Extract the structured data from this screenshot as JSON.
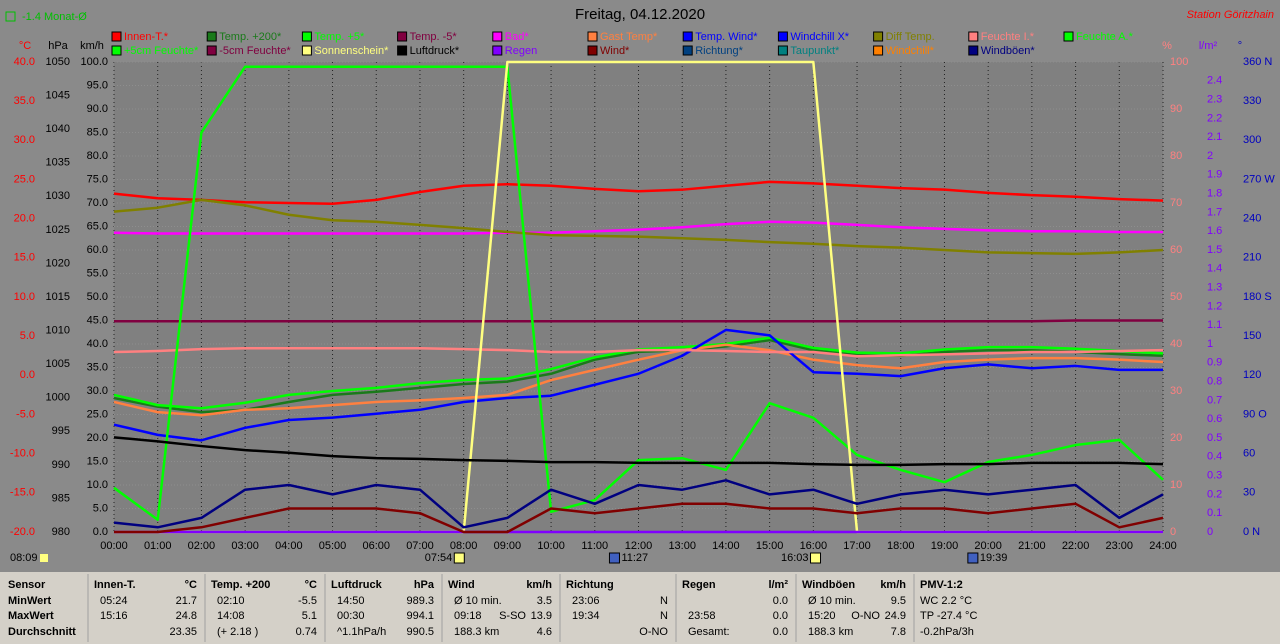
{
  "chart_data": {
    "type": "line",
    "title": "Freitag, 04.12.2020",
    "station": "Station Göritzhain",
    "month_note": "-1.4 Monat-Ø",
    "left_note": "08:09",
    "xlim": [
      0,
      24
    ],
    "xticks": [
      {
        "value": 0,
        "label": "00:00"
      },
      {
        "value": 1,
        "label": "01:00"
      },
      {
        "value": 2,
        "label": "02:00"
      },
      {
        "value": 3,
        "label": "03:00"
      },
      {
        "value": 4,
        "label": "04:00"
      },
      {
        "value": 5,
        "label": "05:00"
      },
      {
        "value": 6,
        "label": "06:00"
      },
      {
        "value": 7,
        "label": "07:00"
      },
      {
        "value": 8,
        "label": "08:00"
      },
      {
        "value": 9,
        "label": "09:00"
      },
      {
        "value": 10,
        "label": "10:00"
      },
      {
        "value": 11,
        "label": "11:00"
      },
      {
        "value": 12,
        "label": "12:00"
      },
      {
        "value": 13,
        "label": "13:00"
      },
      {
        "value": 14,
        "label": "14:00"
      },
      {
        "value": 15,
        "label": "15:00"
      },
      {
        "value": 16,
        "label": "16:00"
      },
      {
        "value": 17,
        "label": "17:00"
      },
      {
        "value": 18,
        "label": "18:00"
      },
      {
        "value": 19,
        "label": "19:00"
      },
      {
        "value": 20,
        "label": "20:00"
      },
      {
        "value": 21,
        "label": "21:00"
      },
      {
        "value": 22,
        "label": "22:00"
      },
      {
        "value": 23,
        "label": "23:00"
      },
      {
        "value": 24,
        "label": "24:00"
      }
    ],
    "x": [
      0,
      1,
      2,
      3,
      4,
      5,
      6,
      7,
      8,
      9,
      10,
      11,
      12,
      13,
      14,
      15,
      16,
      17,
      18,
      19,
      20,
      21,
      22,
      23,
      24
    ],
    "grid": true,
    "axes": [
      {
        "label": "°C",
        "color": "#ff0000",
        "lim": [
          -20,
          40
        ],
        "ticks": [
          {
            "value": -20,
            "label": "-20.0"
          },
          {
            "value": -15,
            "label": "-15.0"
          },
          {
            "value": -10,
            "label": "-10.0"
          },
          {
            "value": -5,
            "label": "-5.0"
          },
          {
            "value": 0,
            "label": "0.0"
          },
          {
            "value": 5,
            "label": "5.0"
          },
          {
            "value": 10,
            "label": "10.0"
          },
          {
            "value": 15,
            "label": "15.0"
          },
          {
            "value": 20,
            "label": "20.0"
          },
          {
            "value": 25,
            "label": "25.0"
          },
          {
            "value": 30,
            "label": "30.0"
          },
          {
            "value": 35,
            "label": "35.0"
          },
          {
            "value": 40,
            "label": "40.0"
          }
        ]
      },
      {
        "label": "hPa",
        "color": "#000000",
        "lim": [
          980,
          1050
        ],
        "ticks": [
          980,
          985,
          990,
          995,
          1000,
          1005,
          1010,
          1015,
          1020,
          1025,
          1030,
          1035,
          1040,
          1045,
          1050
        ]
      },
      {
        "label": "km/h",
        "color": "#000000",
        "lim": [
          0,
          100
        ],
        "ticks": [
          {
            "value": 0,
            "label": "0.0"
          },
          {
            "value": 5,
            "label": "5.0"
          },
          {
            "value": 10,
            "label": "10.0"
          },
          {
            "value": 15,
            "label": "15.0"
          },
          {
            "value": 20,
            "label": "20.0"
          },
          {
            "value": 25,
            "label": "25.0"
          },
          {
            "value": 30,
            "label": "30.0"
          },
          {
            "value": 35,
            "label": "35.0"
          },
          {
            "value": 40,
            "label": "40.0"
          },
          {
            "value": 45,
            "label": "45.0"
          },
          {
            "value": 50,
            "label": "50.0"
          },
          {
            "value": 55,
            "label": "55.0"
          },
          {
            "value": 60,
            "label": "60.0"
          },
          {
            "value": 65,
            "label": "65.0"
          },
          {
            "value": 70,
            "label": "70.0"
          },
          {
            "value": 75,
            "label": "75.0"
          },
          {
            "value": 80,
            "label": "80.0"
          },
          {
            "value": 85,
            "label": "85.0"
          },
          {
            "value": 90,
            "label": "90.0"
          },
          {
            "value": 95,
            "label": "95.0"
          },
          {
            "value": 100,
            "label": "100.0"
          }
        ]
      },
      {
        "label": "%",
        "color": "#ff8080",
        "lim": [
          0,
          100
        ],
        "ticks": [
          0,
          10,
          20,
          30,
          40,
          50,
          60,
          70,
          80,
          90,
          100
        ]
      },
      {
        "label": "l/m²",
        "color": "#8000ff",
        "lim": [
          0,
          2.5
        ],
        "ticks": [
          0,
          0.1,
          0.2,
          0.3,
          0.4,
          0.5,
          0.6,
          0.7,
          0.8,
          0.9,
          1,
          1.1,
          1.2,
          1.3,
          1.4,
          1.5,
          1.6,
          1.7,
          1.8,
          1.9,
          2,
          2.1,
          2.2,
          2.3,
          2.4
        ]
      },
      {
        "label": "°",
        "color": "#0000c0",
        "lim": [
          0,
          360
        ],
        "ticks": [
          {
            "value": 0,
            "label": "0 N"
          },
          30,
          60,
          {
            "value": 90,
            "label": "90 O"
          },
          120,
          150,
          {
            "value": 180,
            "label": "180 S"
          },
          210,
          240,
          {
            "value": 270,
            "label": "270 W"
          },
          300,
          330,
          {
            "value": 360,
            "label": "360 N"
          }
        ]
      }
    ],
    "series": [
      {
        "name": "Innen-T.*",
        "color": "#ff0000",
        "axis": 0,
        "values": [
          23.2,
          22.6,
          22.4,
          22.1,
          22.0,
          21.9,
          22.4,
          23.4,
          24.2,
          24.4,
          24.2,
          23.8,
          23.5,
          23.7,
          24.2,
          24.7,
          24.5,
          24.2,
          23.9,
          23.7,
          23.3,
          23.0,
          22.8,
          22.5,
          22.3
        ]
      },
      {
        "name": "Temp. +200*",
        "color": "#1a7a1a",
        "axis": 0,
        "values": [
          -2.9,
          -4.0,
          -4.7,
          -4.4,
          -3.4,
          -2.5,
          -2.1,
          -1.6,
          -1.1,
          -0.8,
          0.2,
          2.0,
          3.0,
          3.2,
          3.7,
          4.5,
          3.2,
          2.6,
          2.5,
          3.0,
          3.2,
          3.2,
          3.0,
          2.7,
          2.5
        ]
      },
      {
        "name": "Temp. +5*",
        "color": "#00ff00",
        "axis": 0,
        "values": [
          -2.5,
          -3.8,
          -4.2,
          -3.5,
          -2.5,
          -2.0,
          -1.6,
          -1.0,
          -0.6,
          -0.4,
          0.8,
          2.3,
          3.3,
          3.6,
          4.0,
          4.8,
          3.5,
          2.9,
          2.8,
          3.3,
          3.6,
          3.6,
          3.4,
          3.1,
          2.8
        ]
      },
      {
        "name": "Temp. -5*",
        "color": "#800040",
        "axis": 0,
        "values": [
          6.9,
          6.9,
          6.9,
          6.9,
          6.9,
          6.9,
          6.9,
          6.9,
          6.9,
          6.9,
          6.9,
          6.9,
          6.9,
          6.9,
          6.9,
          6.9,
          6.9,
          6.9,
          6.9,
          6.9,
          6.9,
          6.9,
          7.0,
          7.0,
          7.0
        ]
      },
      {
        "name": "Bad*",
        "color": "#ff00ff",
        "axis": 0,
        "values": [
          18.2,
          18.1,
          18.1,
          18.1,
          18.1,
          18.1,
          18.1,
          18.1,
          18.1,
          18.2,
          18.2,
          18.4,
          18.6,
          18.9,
          19.3,
          19.6,
          19.5,
          19.2,
          18.9,
          18.7,
          18.5,
          18.4,
          18.4,
          18.3,
          18.3
        ]
      },
      {
        "name": "Gast Temp*",
        "color": "#ff8040",
        "axis": 0,
        "values": [
          -3.4,
          -4.7,
          -5.1,
          -4.4,
          -4.2,
          -3.8,
          -3.4,
          -3.2,
          -2.9,
          -2.5,
          -0.6,
          0.7,
          2.0,
          3.2,
          3.9,
          3.2,
          2.0,
          1.3,
          0.9,
          1.7,
          2.0,
          2.2,
          2.2,
          2.0,
          1.7
        ]
      },
      {
        "name": "Temp. Wind*",
        "color": "#0000ff",
        "axis": 0,
        "values": [
          -6.3,
          -7.6,
          -8.3,
          -6.7,
          -5.7,
          -5.4,
          -4.9,
          -4.4,
          -3.4,
          -2.9,
          -2.6,
          -1.2,
          0.2,
          2.5,
          5.8,
          5.1,
          0.4,
          0.2,
          -0.1,
          0.9,
          1.4,
          0.9,
          1.2,
          0.7,
          0.7
        ]
      },
      {
        "name": "Windchill X*",
        "color": "#0000ff"
      },
      {
        "name": "Diff Temp.",
        "color": "#808000",
        "axis": 0,
        "values": [
          20.9,
          21.4,
          22.4,
          21.7,
          20.5,
          19.8,
          19.6,
          19.2,
          18.8,
          18.3,
          17.9,
          17.8,
          17.7,
          17.5,
          17.3,
          17.0,
          16.8,
          16.5,
          16.3,
          16.0,
          15.7,
          15.6,
          15.5,
          15.7,
          16.0
        ]
      },
      {
        "name": "Feuchte I.*",
        "color": "#ff8080",
        "axis": 3,
        "values": [
          38.3,
          38.5,
          38.9,
          39.1,
          39.1,
          39.1,
          39.1,
          39.1,
          38.9,
          38.7,
          38.3,
          38.3,
          38.7,
          38.7,
          38.5,
          38.3,
          38.3,
          37.4,
          37.6,
          37.8,
          38.0,
          38.3,
          38.3,
          38.5,
          38.7
        ]
      },
      {
        "name": "Feuchte A.*",
        "color": "#00ff00",
        "axis": 3,
        "values": [
          9.4,
          2.6,
          85,
          99,
          99,
          99,
          99,
          99,
          99,
          99,
          4.3,
          6.8,
          15.3,
          15.7,
          13.2,
          27.4,
          24.3,
          16.4,
          13.2,
          10.6,
          14.9,
          16.4,
          18.5,
          19.6,
          11.1
        ]
      },
      {
        "name": "+5cm Feuchte*",
        "color": "#00ff00"
      },
      {
        "name": "-5cm Feuchte*",
        "color": "#800040"
      },
      {
        "name": "Sonnenschein*",
        "color": "#ffff80",
        "axis": 3,
        "values": [
          0,
          0,
          0,
          0,
          0,
          0,
          0,
          0,
          0,
          100,
          100,
          100,
          100,
          100,
          100,
          100,
          100,
          0,
          0,
          0,
          0,
          0,
          0,
          0,
          0
        ]
      },
      {
        "name": "Luftdruck*",
        "color": "#000000",
        "axis": 1,
        "values": [
          994.1,
          993.5,
          992.8,
          992.2,
          991.8,
          991.3,
          991.0,
          990.9,
          990.7,
          990.6,
          990.4,
          990.4,
          990.3,
          990.3,
          990.3,
          990.3,
          990.1,
          990.0,
          990.0,
          990.1,
          990.1,
          990.3,
          990.3,
          990.3,
          990.1
        ]
      },
      {
        "name": "Regen",
        "color": "#8000ff",
        "axis": 4,
        "values": [
          0,
          0,
          0,
          0,
          0,
          0,
          0,
          0,
          0,
          0,
          0,
          0,
          0,
          0,
          0,
          0,
          0,
          0,
          0,
          0,
          0,
          0,
          0,
          0,
          0
        ]
      },
      {
        "name": "Wind*",
        "color": "#800000",
        "axis": 2,
        "values": [
          0,
          0,
          1,
          3,
          5,
          5,
          5,
          4,
          0,
          0,
          5,
          4,
          5,
          6,
          6,
          5,
          5,
          4,
          5,
          5,
          4,
          5,
          6,
          1,
          3
        ]
      },
      {
        "name": "Richtung*",
        "color": "#004080"
      },
      {
        "name": "Taupunkt*",
        "color": "#008080"
      },
      {
        "name": "Windchill*",
        "color": "#ff8000"
      },
      {
        "name": "Windböen*",
        "color": "#000080",
        "axis": 2,
        "values": [
          2,
          1,
          3,
          9,
          10,
          8,
          10,
          9,
          1,
          3,
          9,
          6,
          10,
          9,
          11,
          8,
          9,
          6,
          8,
          9,
          8,
          9,
          10,
          3,
          8
        ]
      }
    ],
    "annotations": [
      {
        "label": "07:54",
        "x": 7.9,
        "icon": "sun"
      },
      {
        "label": "11:27",
        "x": 11.45,
        "icon": "moon"
      },
      {
        "label": "16:03",
        "x": 16.05,
        "icon": "sun"
      },
      {
        "label": "19:39",
        "x": 19.65,
        "icon": "moon"
      }
    ]
  },
  "stats": {
    "labels": [
      "Sensor",
      "MinWert",
      "MaxWert",
      "Durchschnitt"
    ],
    "sections": [
      {
        "title": "Innen-T.",
        "unit": "°C",
        "rows": [
          [
            "05:24",
            "21.7"
          ],
          [
            "15:16",
            "24.8"
          ],
          [
            "23.35"
          ]
        ]
      },
      {
        "title": "Temp. +200",
        "unit": "°C",
        "rows": [
          [
            "02:10",
            "-5.5"
          ],
          [
            "14:08",
            "5.1"
          ],
          [
            "(+ 2.18 )",
            "0.74"
          ]
        ]
      },
      {
        "title": "Luftdruck",
        "unit": "hPa",
        "rows": [
          [
            "14:50",
            "989.3"
          ],
          [
            "00:30",
            "994.1"
          ],
          [
            "^1.1hPa/h",
            "990.5"
          ]
        ]
      },
      {
        "title": "Wind",
        "unit": "km/h",
        "rows": [
          [
            "Ø 10 min.",
            "3.5"
          ],
          [
            "09:18",
            "S-SO",
            "13.9"
          ],
          [
            "188.3 km",
            "4.6"
          ]
        ]
      },
      {
        "title": "Richtung",
        "rows": [
          [
            "23:06",
            "N"
          ],
          [
            "19:34",
            "N"
          ],
          [
            "O-NO"
          ]
        ]
      },
      {
        "title": "Regen",
        "unit": "l/m²",
        "rows": [
          [
            "0.0"
          ],
          [
            "23:58",
            "0.0"
          ],
          [
            "Gesamt:",
            "0.0"
          ]
        ]
      },
      {
        "title": "Windböen",
        "unit": "km/h",
        "rows": [
          [
            "Ø 10 min.",
            "9.5"
          ],
          [
            "15:20",
            "O-NO",
            "24.9"
          ],
          [
            "188.3 km",
            "7.8"
          ]
        ]
      },
      {
        "title": "PMV-1:2",
        "align": "left",
        "rows": [
          [
            "WC 2.2 °C"
          ],
          [
            "TP -27.4 °C"
          ],
          [
            "-0.2hPa/3h"
          ]
        ]
      }
    ]
  }
}
